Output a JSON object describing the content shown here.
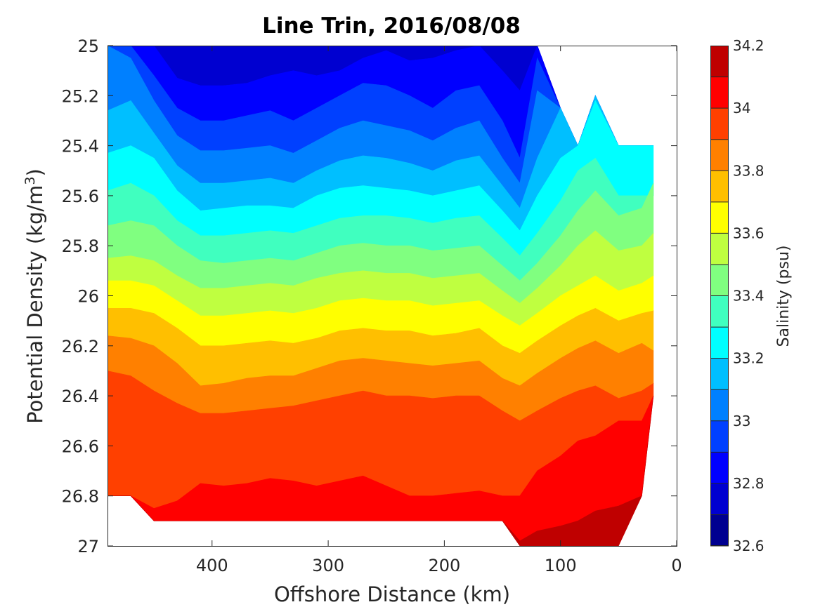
{
  "chart_data": {
    "type": "contourf",
    "title": "Line Trin, 2016/08/08",
    "xlabel": "Offshore Distance (km)",
    "ylabel_parts": [
      "Potential Density (kg/m",
      "3",
      ")"
    ],
    "x_axis": {
      "ticks": [
        "400",
        "300",
        "200",
        "100",
        "0"
      ],
      "tick_values": [
        400,
        300,
        200,
        100,
        0
      ],
      "range": [
        490,
        0
      ],
      "reversed": true
    },
    "y_axis": {
      "ticks": [
        "25",
        "25.2",
        "25.4",
        "25.6",
        "25.8",
        "26",
        "26.2",
        "26.4",
        "26.6",
        "26.8",
        "27"
      ],
      "tick_values": [
        25,
        25.2,
        25.4,
        25.6,
        25.8,
        26,
        26.2,
        26.4,
        26.6,
        26.8,
        27
      ],
      "range": [
        25,
        27
      ],
      "reversed": true
    },
    "colorbar": {
      "label": "Salinity (psu)",
      "ticks": [
        "32.6",
        "32.8",
        "33",
        "33.2",
        "33.4",
        "33.6",
        "33.8",
        "34",
        "34.2"
      ],
      "tick_values": [
        32.6,
        32.8,
        33.0,
        33.2,
        33.4,
        33.6,
        33.8,
        34.0,
        34.2
      ],
      "levels": [
        32.6,
        32.7,
        32.8,
        32.9,
        33.0,
        33.1,
        33.2,
        33.3,
        33.4,
        33.5,
        33.6,
        33.7,
        33.8,
        33.9,
        34.0,
        34.1,
        34.2
      ],
      "colors": [
        "#000090",
        "#0000d0",
        "#0000ff",
        "#0040ff",
        "#0080ff",
        "#00bfff",
        "#00ffff",
        "#40ffbf",
        "#80ff80",
        "#bfff40",
        "#ffff00",
        "#ffbf00",
        "#ff8000",
        "#ff4000",
        "#ff0000",
        "#bf0000"
      ]
    },
    "field": {
      "x_km": [
        490,
        470,
        450,
        430,
        410,
        390,
        370,
        350,
        330,
        310,
        290,
        270,
        250,
        230,
        210,
        190,
        170,
        150,
        135,
        120,
        100,
        85,
        70,
        50,
        30,
        20
      ],
      "bottom_density": [
        26.8,
        26.8,
        26.9,
        26.9,
        26.9,
        26.9,
        26.9,
        26.9,
        26.9,
        26.9,
        26.9,
        26.9,
        26.9,
        26.9,
        26.9,
        26.9,
        26.9,
        26.9,
        27.0,
        27.0,
        27.0,
        27.0,
        27.0,
        27.0,
        26.8,
        26.4
      ],
      "top_density": [
        25.0,
        25.0,
        25.0,
        25.0,
        25.0,
        25.0,
        25.0,
        25.0,
        25.0,
        25.0,
        25.0,
        25.0,
        25.0,
        25.0,
        25.0,
        25.0,
        25.0,
        25.0,
        25.0,
        25.0,
        25.25,
        25.4,
        25.2,
        25.4,
        25.4,
        25.4
      ],
      "isohaline_density": {
        "32.8": [
          null,
          null,
          25.0,
          25.13,
          25.16,
          25.16,
          25.15,
          25.12,
          25.1,
          25.12,
          25.1,
          25.05,
          25.02,
          25.06,
          25.05,
          25.02,
          25.0,
          25.1,
          25.18,
          null,
          null,
          null,
          null,
          null,
          null,
          null
        ],
        "32.9": [
          null,
          null,
          25.12,
          25.25,
          25.3,
          25.3,
          25.28,
          25.26,
          25.3,
          25.25,
          25.2,
          25.15,
          25.16,
          25.2,
          25.25,
          25.18,
          25.16,
          25.3,
          25.45,
          25.05,
          null,
          null,
          null,
          null,
          null,
          null
        ],
        "33.0": [
          null,
          25.05,
          25.22,
          25.36,
          25.42,
          25.42,
          25.41,
          25.4,
          25.43,
          25.38,
          25.33,
          25.3,
          25.32,
          25.34,
          25.38,
          25.33,
          25.3,
          25.45,
          25.55,
          25.18,
          null,
          null,
          null,
          null,
          null,
          null
        ],
        "33.1": [
          25.26,
          25.22,
          25.35,
          25.48,
          25.55,
          25.55,
          25.54,
          25.53,
          25.55,
          25.5,
          25.46,
          25.44,
          25.45,
          25.47,
          25.5,
          25.46,
          25.44,
          25.56,
          25.65,
          25.45,
          25.25,
          null,
          null,
          null,
          null,
          null
        ],
        "33.2": [
          25.43,
          25.4,
          25.45,
          25.58,
          25.66,
          25.65,
          25.64,
          25.64,
          25.65,
          25.6,
          25.57,
          25.56,
          25.57,
          25.58,
          25.6,
          25.58,
          25.56,
          25.66,
          25.74,
          25.6,
          25.45,
          25.34,
          25.22,
          25.4,
          25.4,
          25.4
        ],
        "33.3": [
          25.58,
          25.55,
          25.6,
          25.7,
          25.76,
          25.76,
          25.75,
          25.74,
          25.75,
          25.72,
          25.69,
          25.68,
          25.68,
          25.69,
          25.71,
          25.69,
          25.68,
          25.77,
          25.84,
          25.75,
          25.62,
          25.5,
          25.45,
          25.6,
          25.6,
          25.6
        ],
        "33.4": [
          25.72,
          25.7,
          25.72,
          25.8,
          25.86,
          25.87,
          25.86,
          25.85,
          25.86,
          25.83,
          25.8,
          25.79,
          25.8,
          25.8,
          25.82,
          25.81,
          25.8,
          25.88,
          25.94,
          25.87,
          25.76,
          25.66,
          25.58,
          25.68,
          25.65,
          25.55
        ],
        "33.5": [
          25.85,
          25.84,
          25.86,
          25.92,
          25.97,
          25.97,
          25.96,
          25.95,
          25.96,
          25.93,
          25.91,
          25.9,
          25.91,
          25.91,
          25.93,
          25.92,
          25.91,
          25.98,
          26.03,
          25.97,
          25.88,
          25.8,
          25.74,
          25.82,
          25.8,
          25.75
        ],
        "33.6": [
          25.94,
          25.94,
          25.96,
          26.02,
          26.08,
          26.08,
          26.07,
          26.06,
          26.07,
          26.05,
          26.02,
          26.01,
          26.02,
          26.02,
          26.04,
          26.03,
          26.02,
          26.08,
          26.12,
          26.07,
          26.0,
          25.96,
          25.92,
          25.98,
          25.95,
          25.92
        ],
        "33.7": [
          26.05,
          26.05,
          26.07,
          26.13,
          26.2,
          26.2,
          26.19,
          26.18,
          26.19,
          26.17,
          26.14,
          26.13,
          26.14,
          26.14,
          26.16,
          26.15,
          26.13,
          26.2,
          26.23,
          26.18,
          26.12,
          26.08,
          26.05,
          26.1,
          26.07,
          26.06
        ],
        "33.8": [
          26.16,
          26.17,
          26.2,
          26.27,
          26.36,
          26.35,
          26.33,
          26.32,
          26.32,
          26.29,
          26.26,
          26.25,
          26.26,
          26.27,
          26.28,
          26.27,
          26.26,
          26.33,
          26.36,
          26.31,
          26.25,
          26.21,
          26.18,
          26.23,
          26.19,
          26.22
        ],
        "33.9": [
          26.3,
          26.32,
          26.38,
          26.43,
          26.47,
          26.47,
          26.46,
          26.45,
          26.44,
          26.42,
          26.4,
          26.38,
          26.4,
          26.4,
          26.41,
          26.4,
          26.4,
          26.46,
          26.5,
          26.46,
          26.41,
          26.38,
          26.36,
          26.41,
          26.38,
          26.35
        ],
        "34.0": [
          26.8,
          26.85,
          26.85,
          26.82,
          26.75,
          26.76,
          26.75,
          26.73,
          26.74,
          26.76,
          26.74,
          26.72,
          26.76,
          26.8,
          26.8,
          26.79,
          26.78,
          26.8,
          26.8,
          26.7,
          26.64,
          26.58,
          26.56,
          26.5,
          26.5,
          null
        ],
        "34.1": [
          null,
          null,
          null,
          null,
          null,
          null,
          null,
          null,
          null,
          null,
          null,
          null,
          null,
          null,
          null,
          null,
          null,
          null,
          26.98,
          26.94,
          26.92,
          26.9,
          26.86,
          26.84,
          26.8,
          null
        ]
      }
    }
  }
}
